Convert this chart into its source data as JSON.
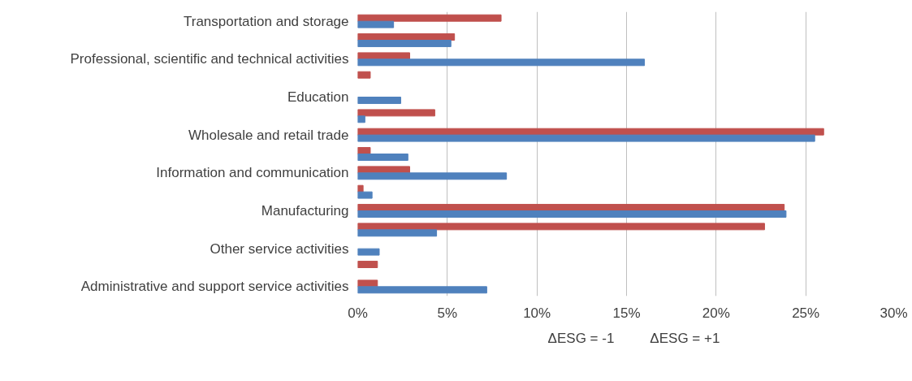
{
  "chart_data": {
    "type": "bar",
    "orientation": "horizontal",
    "categories": [
      "Transportation and storage",
      null,
      "Professional, scientific and technical activities",
      null,
      "Education",
      null,
      "Wholesale and retail trade",
      null,
      "Information and communication",
      null,
      "Manufacturing",
      null,
      "Other service activities",
      null,
      "Administrative and support service activities"
    ],
    "series": [
      {
        "name": "ΔESG = -1",
        "color": "#c0504d",
        "values": [
          8.0,
          5.4,
          2.9,
          0.7,
          null,
          4.3,
          26.0,
          0.7,
          2.9,
          0.3,
          23.8,
          22.7,
          null,
          1.1,
          1.1
        ]
      },
      {
        "name": "ΔESG = +1",
        "color": "#4f81bd",
        "values": [
          2.0,
          5.2,
          16.0,
          null,
          2.4,
          0.4,
          25.5,
          2.8,
          8.3,
          0.8,
          23.9,
          4.4,
          1.2,
          null,
          7.2
        ]
      }
    ],
    "xlim": [
      0,
      30
    ],
    "xticks": [
      {
        "value": 0,
        "label": "0%"
      },
      {
        "value": 5,
        "label": "5%"
      },
      {
        "value": 10,
        "label": "10%"
      },
      {
        "value": 15,
        "label": "15%"
      },
      {
        "value": 20,
        "label": "20%"
      },
      {
        "value": 25,
        "label": "25%"
      },
      {
        "value": 30,
        "label": "30%"
      }
    ],
    "grid": "x",
    "legend": "bottom"
  }
}
